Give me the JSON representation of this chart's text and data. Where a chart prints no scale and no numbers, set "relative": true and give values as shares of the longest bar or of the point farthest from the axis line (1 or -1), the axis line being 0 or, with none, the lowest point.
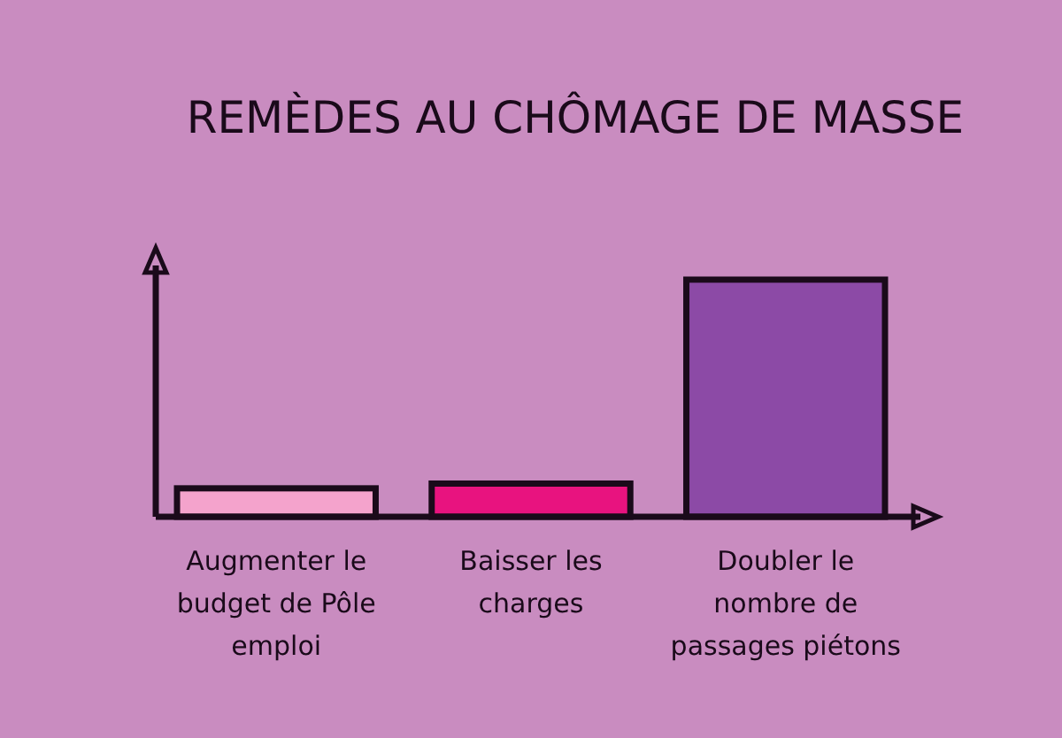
{
  "chart_data": {
    "type": "bar",
    "title": "REMÈDES AU CHÔMAGE DE MASSE",
    "relative": true,
    "categories": [
      "Augmenter le budget de Pôle emploi",
      "Baisser les charges",
      "Doubler le nombre de passages piétons"
    ],
    "values": [
      0.12,
      0.14,
      1
    ],
    "colors": [
      "#f4a3cc",
      "#e8137f",
      "#8c4aa6"
    ]
  }
}
